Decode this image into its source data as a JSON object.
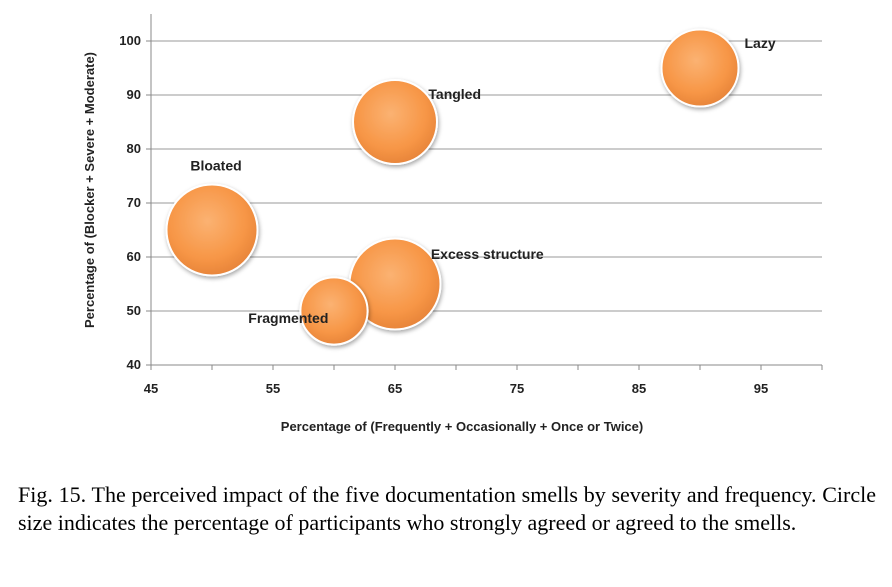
{
  "chart_data": {
    "type": "bubble",
    "xlabel": "Percentage of (Frequently + Occasionally  + Once or Twice)",
    "ylabel": "Percentage of (Blocker + Severe + Moderate)",
    "xlim": [
      45,
      100
    ],
    "ylim": [
      40,
      105
    ],
    "xticks": [
      45,
      55,
      65,
      75,
      85,
      95
    ],
    "yticks": [
      40,
      50,
      60,
      70,
      80,
      90,
      100
    ],
    "grid": "horizontal",
    "bubble_color": "#F79646",
    "points": [
      {
        "label": "Lazy",
        "x": 90,
        "y": 95,
        "size": 55
      },
      {
        "label": "Tangled",
        "x": 65,
        "y": 85,
        "size": 60
      },
      {
        "label": "Bloated",
        "x": 50,
        "y": 65,
        "size": 65
      },
      {
        "label": "Excess structure",
        "x": 65,
        "y": 55,
        "size": 65
      },
      {
        "label": "Fragmented",
        "x": 60,
        "y": 50,
        "size": 48
      }
    ]
  },
  "caption": "Fig. 15.  The perceived impact of the five documentation smells by severity and frequency. Circle size indicates the percentage of participants who strongly agreed or agreed to the smells."
}
